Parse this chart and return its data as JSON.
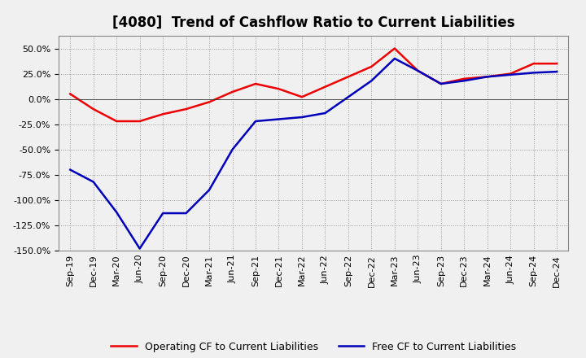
{
  "title": "[4080]  Trend of Cashflow Ratio to Current Liabilities",
  "x_labels": [
    "Sep-19",
    "Dec-19",
    "Mar-20",
    "Jun-20",
    "Sep-20",
    "Dec-20",
    "Mar-21",
    "Jun-21",
    "Sep-21",
    "Dec-21",
    "Mar-22",
    "Jun-22",
    "Sep-22",
    "Dec-22",
    "Mar-23",
    "Jun-23",
    "Sep-23",
    "Dec-23",
    "Mar-24",
    "Jun-24",
    "Sep-24",
    "Dec-24"
  ],
  "operating_cf": [
    5.0,
    -10.0,
    -22.0,
    -22.0,
    -15.0,
    -10.0,
    -3.0,
    7.0,
    15.0,
    10.0,
    2.0,
    12.0,
    22.0,
    32.0,
    50.0,
    28.0,
    15.0,
    20.0,
    22.0,
    25.0,
    35.0,
    35.0
  ],
  "free_cf": [
    -70.0,
    -82.0,
    -112.0,
    -148.0,
    -113.0,
    -113.0,
    -90.0,
    -50.0,
    -22.0,
    -20.0,
    -18.0,
    -14.0,
    2.0,
    18.0,
    40.0,
    28.0,
    15.0,
    18.0,
    22.0,
    24.0,
    26.0,
    27.0
  ],
  "operating_color": "#ee0000",
  "free_color": "#0000bb",
  "background_color": "#f0f0f0",
  "plot_bg_color": "#f0f0f0",
  "ylim": [
    -150,
    62.5
  ],
  "yticks": [
    -150,
    -125,
    -100,
    -75,
    -50,
    -25,
    0,
    25,
    50
  ],
  "grid_color": "#999999",
  "legend_op": "Operating CF to Current Liabilities",
  "legend_free": "Free CF to Current Liabilities",
  "line_width": 1.8,
  "title_fontsize": 12,
  "tick_fontsize": 8,
  "legend_fontsize": 9
}
